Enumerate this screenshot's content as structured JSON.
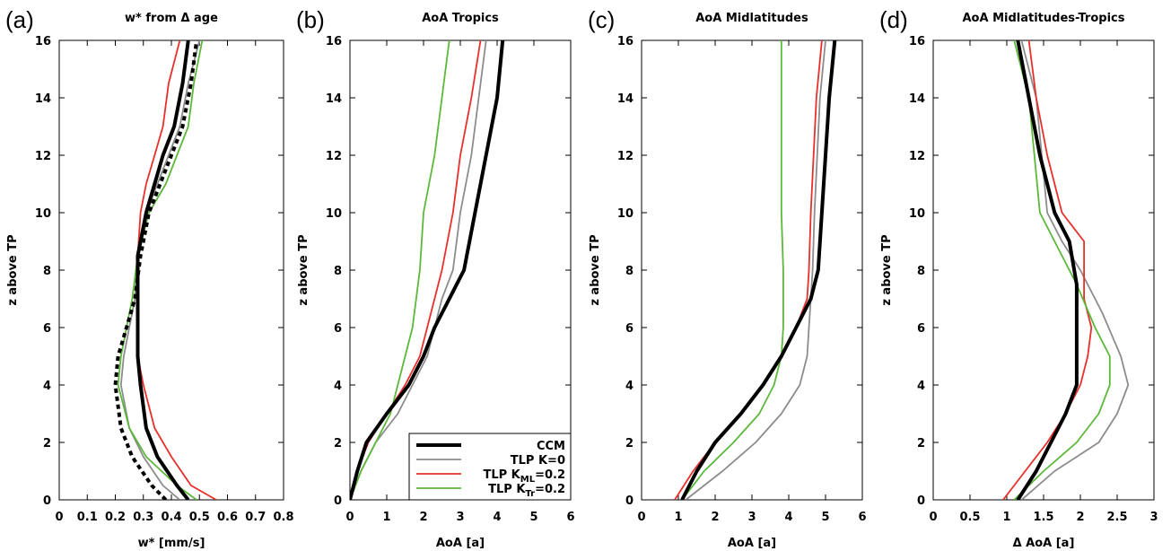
{
  "colors": {
    "ccm": "#000000",
    "k0": "#8c8c8c",
    "kml": "#e8302b",
    "ktr": "#5cb83a"
  },
  "legend": {
    "entries": [
      {
        "key": "ccm",
        "label": "CCM",
        "sub": ""
      },
      {
        "key": "k0",
        "label": "TLP K=0",
        "sub": ""
      },
      {
        "key": "kml",
        "label": "TLP K",
        "sub": "ML",
        "suffix": "=0.2"
      },
      {
        "key": "ktr",
        "label": "TLP K",
        "sub": "Tr",
        "suffix": "=0.2"
      }
    ]
  },
  "chart_data": [
    {
      "type": "line",
      "letter": "(a)",
      "title": "w* from Δ age",
      "xlabel": "w* [mm/s]",
      "ylabel": "z above TP",
      "xlim": [
        0,
        0.8
      ],
      "ylim": [
        0,
        16
      ],
      "xticks": [
        0,
        0.1,
        0.2,
        0.3,
        0.4,
        0.5,
        0.6,
        0.7,
        0.8
      ],
      "xtick_labels": [
        "0",
        "0.1",
        "0.2",
        "0.3",
        "0.4",
        "0.5",
        "0.6",
        "0.7",
        "0.8"
      ],
      "yticks": [
        0,
        2,
        4,
        6,
        8,
        10,
        12,
        14,
        16
      ],
      "series": [
        {
          "key": "ccm",
          "width": 4,
          "dash": "",
          "x": [
            0.46,
            0.42,
            0.35,
            0.31,
            0.29,
            0.28,
            0.28,
            0.28,
            0.28,
            0.31,
            0.34,
            0.37,
            0.41,
            0.44,
            0.46
          ],
          "y": [
            0,
            0.5,
            1.5,
            2.5,
            4,
            5,
            6,
            7,
            8.5,
            10,
            11,
            12,
            13,
            14.5,
            16
          ]
        },
        {
          "key": "ccm",
          "width": 4,
          "dash": "5,4",
          "x": [
            0.38,
            0.33,
            0.26,
            0.22,
            0.2,
            0.21,
            0.24,
            0.27,
            0.29,
            0.32,
            0.36,
            0.4,
            0.44,
            0.47,
            0.49
          ],
          "y": [
            0,
            0.5,
            1.5,
            2.5,
            4,
            5,
            6,
            7,
            8.5,
            10,
            11,
            12,
            13,
            14.5,
            16
          ]
        },
        {
          "key": "k0",
          "width": 1.8,
          "dash": "",
          "x": [
            0.43,
            0.37,
            0.3,
            0.25,
            0.22,
            0.23,
            0.25,
            0.27,
            0.28,
            0.31,
            0.35,
            0.39,
            0.43,
            0.46,
            0.5
          ],
          "y": [
            0,
            0.5,
            1.5,
            2.5,
            4,
            5,
            6,
            7,
            8.5,
            10,
            11,
            12,
            13,
            14.5,
            16
          ]
        },
        {
          "key": "kml",
          "width": 1.8,
          "dash": "",
          "x": [
            0.56,
            0.47,
            0.4,
            0.34,
            0.3,
            0.28,
            0.28,
            0.28,
            0.28,
            0.29,
            0.31,
            0.34,
            0.37,
            0.39,
            0.43
          ],
          "y": [
            0,
            0.5,
            1.5,
            2.5,
            4,
            5,
            6,
            7,
            8.5,
            10,
            11,
            12,
            13,
            14.5,
            16
          ]
        },
        {
          "key": "ktr",
          "width": 1.8,
          "dash": "",
          "x": [
            0.49,
            0.42,
            0.31,
            0.25,
            0.21,
            0.22,
            0.24,
            0.26,
            0.28,
            0.32,
            0.38,
            0.42,
            0.46,
            0.48,
            0.51
          ],
          "y": [
            0,
            0.5,
            1.5,
            2.5,
            4,
            5,
            6,
            7,
            8.5,
            10,
            11,
            12,
            13,
            14.5,
            16
          ]
        }
      ]
    },
    {
      "type": "line",
      "letter": "(b)",
      "title": "AoA Tropics",
      "xlabel": "AoA [a]",
      "ylabel": "z above TP",
      "xlim": [
        0,
        6
      ],
      "ylim": [
        0,
        16
      ],
      "xticks": [
        0,
        1,
        2,
        3,
        4,
        5,
        6
      ],
      "xtick_labels": [
        "0",
        "1",
        "2",
        "3",
        "4",
        "5",
        "6"
      ],
      "yticks": [
        0,
        2,
        4,
        6,
        8,
        10,
        12,
        14,
        16
      ],
      "legend": "bottom-right",
      "series": [
        {
          "key": "ccm",
          "width": 4,
          "dash": "",
          "x": [
            0,
            0.1,
            0.2,
            0.45,
            1.0,
            1.6,
            2.0,
            2.3,
            2.7,
            3.1,
            3.4,
            3.7,
            4.0,
            4.15
          ],
          "y": [
            0,
            0.5,
            1,
            2,
            3,
            4,
            5,
            6,
            7,
            8,
            10,
            12,
            14,
            16
          ]
        },
        {
          "key": "k0",
          "width": 1.8,
          "dash": "",
          "x": [
            0,
            0.3,
            0.7,
            1.3,
            1.7,
            2.1,
            2.3,
            2.5,
            2.8,
            3.0,
            3.3,
            3.5,
            3.7
          ],
          "y": [
            0,
            1,
            2,
            3,
            4,
            5,
            6,
            7,
            8,
            10,
            12,
            14,
            16
          ]
        },
        {
          "key": "kml",
          "width": 1.8,
          "dash": "",
          "x": [
            0,
            0.2,
            0.5,
            1.0,
            1.5,
            1.9,
            2.1,
            2.3,
            2.5,
            2.8,
            3.0,
            3.3,
            3.55
          ],
          "y": [
            0,
            1,
            2,
            3,
            4,
            5,
            6,
            7,
            8,
            10,
            12,
            14,
            16
          ]
        },
        {
          "key": "ktr",
          "width": 1.8,
          "dash": "",
          "x": [
            0,
            0.3,
            0.7,
            1.1,
            1.3,
            1.5,
            1.7,
            1.9,
            2.0,
            2.3,
            2.7
          ],
          "y": [
            0,
            1,
            2,
            3,
            4,
            5,
            6,
            8,
            10,
            12,
            16
          ]
        }
      ]
    },
    {
      "type": "line",
      "letter": "(c)",
      "title": "AoA Midlatitudes",
      "xlabel": "AoA [a]",
      "ylabel": "z above TP",
      "xlim": [
        0,
        6
      ],
      "ylim": [
        0,
        16
      ],
      "xticks": [
        0,
        1,
        2,
        3,
        4,
        5,
        6
      ],
      "xtick_labels": [
        "0",
        "1",
        "2",
        "3",
        "4",
        "5",
        "6"
      ],
      "yticks": [
        0,
        2,
        4,
        6,
        8,
        10,
        12,
        14,
        16
      ],
      "series": [
        {
          "key": "ccm",
          "width": 4,
          "dash": "",
          "x": [
            1.1,
            1.5,
            2.0,
            2.7,
            3.3,
            3.8,
            4.2,
            4.6,
            4.8,
            4.9,
            5.1,
            5.25
          ],
          "y": [
            0,
            1,
            2,
            3,
            4,
            5,
            6,
            7,
            8,
            10,
            14,
            16
          ]
        },
        {
          "key": "k0",
          "width": 1.8,
          "dash": "",
          "x": [
            1.2,
            2.2,
            3.1,
            3.8,
            4.3,
            4.5,
            4.55,
            4.6,
            4.65,
            4.7,
            4.85,
            5.0
          ],
          "y": [
            0,
            1,
            2,
            3,
            4,
            5,
            6,
            7,
            8,
            10,
            14,
            16
          ]
        },
        {
          "key": "kml",
          "width": 1.8,
          "dash": "",
          "x": [
            0.9,
            1.4,
            2.0,
            2.7,
            3.3,
            3.8,
            4.2,
            4.5,
            4.55,
            4.6,
            4.75,
            4.9
          ],
          "y": [
            0,
            1,
            2,
            3,
            4,
            5,
            6,
            7,
            8,
            10,
            14,
            16
          ]
        },
        {
          "key": "ktr",
          "width": 1.8,
          "dash": "",
          "x": [
            1.1,
            1.7,
            2.5,
            3.2,
            3.6,
            3.8,
            3.85,
            3.85,
            3.8,
            3.8,
            3.8
          ],
          "y": [
            0,
            1,
            2,
            3,
            4,
            5,
            6,
            8,
            10,
            12,
            16
          ]
        }
      ]
    },
    {
      "type": "line",
      "letter": "(d)",
      "title": "AoA Midlatitudes-Tropics",
      "xlabel": "Δ AoA [a]",
      "ylabel": "z above TP",
      "xlim": [
        0,
        3
      ],
      "ylim": [
        0,
        16
      ],
      "xticks": [
        0,
        0.5,
        1,
        1.5,
        2,
        2.5,
        3
      ],
      "xtick_labels": [
        "0",
        "0.5",
        "1",
        "1.5",
        "2",
        "2.5",
        "3"
      ],
      "yticks": [
        0,
        2,
        4,
        6,
        8,
        10,
        12,
        14,
        16
      ],
      "series": [
        {
          "key": "ccm",
          "width": 4,
          "dash": "",
          "x": [
            1.15,
            1.4,
            1.6,
            1.8,
            1.95,
            1.95,
            1.95,
            1.95,
            1.85,
            1.65,
            1.45,
            1.3,
            1.15
          ],
          "y": [
            0,
            1,
            2,
            3,
            4,
            5,
            6,
            7.5,
            9,
            10,
            12,
            14,
            16
          ]
        },
        {
          "key": "k0",
          "width": 1.8,
          "dash": "",
          "x": [
            1.2,
            1.65,
            2.25,
            2.5,
            2.65,
            2.55,
            2.3,
            2.0,
            1.75,
            1.55,
            1.4,
            1.2
          ],
          "y": [
            0,
            1,
            2,
            3,
            4,
            5,
            6.5,
            8,
            9,
            10,
            14,
            16
          ]
        },
        {
          "key": "kml",
          "width": 1.8,
          "dash": "",
          "x": [
            0.95,
            1.25,
            1.55,
            1.8,
            2.0,
            2.1,
            2.15,
            2.05,
            2.05,
            1.75,
            1.55,
            1.4,
            1.3
          ],
          "y": [
            0,
            1,
            2,
            3,
            4,
            5,
            6,
            7,
            9,
            10,
            12,
            14,
            16
          ]
        },
        {
          "key": "ktr",
          "width": 1.8,
          "dash": "",
          "x": [
            1.1,
            1.5,
            1.95,
            2.25,
            2.4,
            2.4,
            2.2,
            1.95,
            1.65,
            1.45,
            1.3,
            1.1
          ],
          "y": [
            0,
            1,
            2,
            3,
            4,
            5,
            6,
            7.5,
            9,
            10,
            14,
            16
          ]
        }
      ]
    }
  ]
}
